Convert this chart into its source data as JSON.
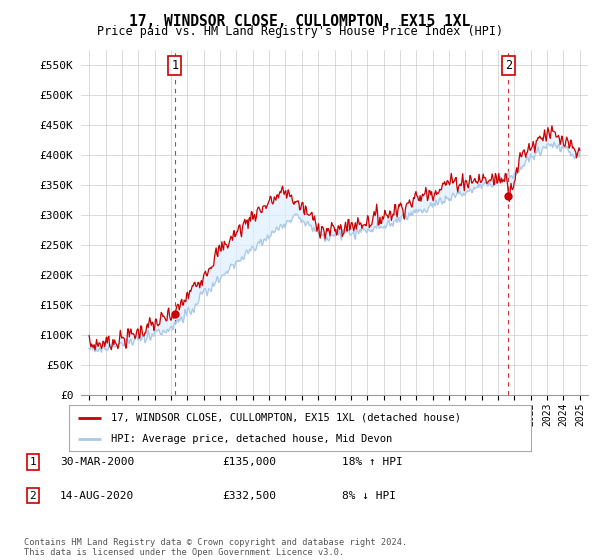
{
  "title": "17, WINDSOR CLOSE, CULLOMPTON, EX15 1XL",
  "subtitle": "Price paid vs. HM Land Registry's House Price Index (HPI)",
  "ylabel_ticks": [
    "£0",
    "£50K",
    "£100K",
    "£150K",
    "£200K",
    "£250K",
    "£300K",
    "£350K",
    "£400K",
    "£450K",
    "£500K",
    "£550K"
  ],
  "ytick_vals": [
    0,
    50000,
    100000,
    150000,
    200000,
    250000,
    300000,
    350000,
    400000,
    450000,
    500000,
    550000
  ],
  "hpi_color": "#aac8e8",
  "price_color": "#cc0000",
  "fill_color": "#ddeeff",
  "sale1_year": 2000.23,
  "sale1_price": 135000,
  "sale2_year": 2020.62,
  "sale2_price": 332500,
  "legend_line1": "17, WINDSOR CLOSE, CULLOMPTON, EX15 1XL (detached house)",
  "legend_line2": "HPI: Average price, detached house, Mid Devon",
  "table_row1": [
    "1",
    "30-MAR-2000",
    "£135,000",
    "18% ↑ HPI"
  ],
  "table_row2": [
    "2",
    "14-AUG-2020",
    "£332,500",
    "8% ↓ HPI"
  ],
  "footnote": "Contains HM Land Registry data © Crown copyright and database right 2024.\nThis data is licensed under the Open Government Licence v3.0.",
  "xmin": 1994.5,
  "xmax": 2025.5,
  "ymin": 0,
  "ymax": 575000
}
